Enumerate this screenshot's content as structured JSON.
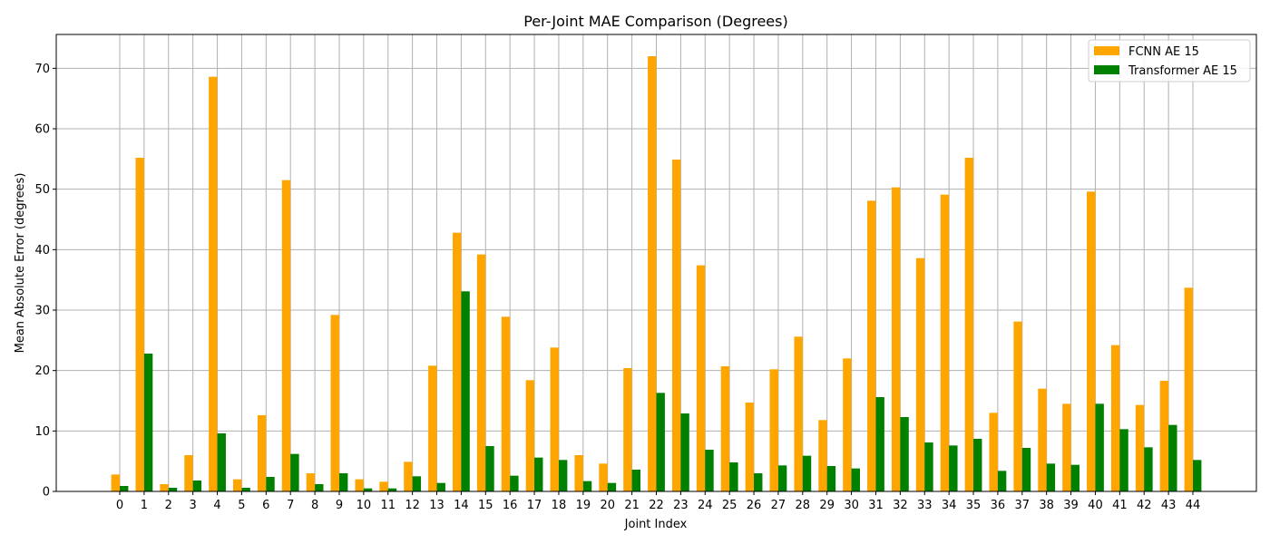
{
  "chart_data": {
    "type": "bar",
    "title": "Per-Joint MAE Comparison (Degrees)",
    "xlabel": "Joint Index",
    "ylabel": "Mean Absolute Error (degrees)",
    "ylim": [
      0,
      75.6
    ],
    "yticks": [
      0,
      10,
      20,
      30,
      40,
      50,
      60,
      70
    ],
    "grid": true,
    "legend_position": "top-right",
    "categories": [
      "0",
      "1",
      "2",
      "3",
      "4",
      "5",
      "6",
      "7",
      "8",
      "9",
      "10",
      "11",
      "12",
      "13",
      "14",
      "15",
      "16",
      "17",
      "18",
      "19",
      "20",
      "21",
      "22",
      "23",
      "24",
      "25",
      "26",
      "27",
      "28",
      "29",
      "30",
      "31",
      "32",
      "33",
      "34",
      "35",
      "36",
      "37",
      "38",
      "39",
      "40",
      "41",
      "42",
      "43",
      "44"
    ],
    "series": [
      {
        "name": "FCNN AE 15",
        "color": "#FFA500",
        "values": [
          2.8,
          55.2,
          1.2,
          6.0,
          68.6,
          2.0,
          12.6,
          51.5,
          3.0,
          29.2,
          2.0,
          1.6,
          4.9,
          20.8,
          42.8,
          39.2,
          28.9,
          18.4,
          23.8,
          6.0,
          4.6,
          20.4,
          72.0,
          54.9,
          37.4,
          20.7,
          14.7,
          20.2,
          25.6,
          11.8,
          22.0,
          48.1,
          50.3,
          38.6,
          49.1,
          55.2,
          13.0,
          28.1,
          17.0,
          14.5,
          49.6,
          24.2,
          14.3,
          18.3,
          33.7
        ]
      },
      {
        "name": "Transformer AE 15",
        "color": "#008000",
        "values": [
          0.9,
          22.8,
          0.6,
          1.8,
          9.6,
          0.6,
          2.4,
          6.2,
          1.2,
          3.0,
          0.5,
          0.5,
          2.5,
          1.4,
          33.1,
          7.5,
          2.6,
          5.6,
          5.2,
          1.7,
          1.4,
          3.6,
          16.3,
          12.9,
          6.9,
          4.8,
          3.0,
          4.3,
          5.9,
          4.2,
          3.8,
          15.6,
          12.3,
          8.1,
          7.6,
          8.7,
          3.4,
          7.2,
          4.6,
          4.4,
          14.5,
          10.3,
          7.3,
          11.0,
          5.2
        ]
      }
    ]
  }
}
